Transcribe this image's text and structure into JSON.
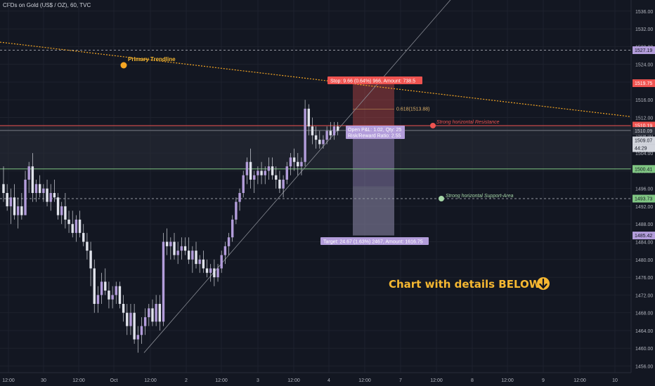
{
  "header": {
    "title": "CFDs on Gold (US$ / OZ), 60, TVC"
  },
  "colors": {
    "background": "#131722",
    "candle": "#b39ddb",
    "resistance": "#ef5350",
    "support": "#81c784",
    "trendline": "#f5a623",
    "gold_text": "#f5b731"
  },
  "chart_data": {
    "type": "candlestick",
    "title": "CFDs on Gold (US$ / OZ), 60, TVC",
    "ylim": [
      1454.5,
      1538.5
    ],
    "y_ticks": [
      1536,
      1532,
      1528,
      1524,
      1520,
      1516,
      1512,
      1508,
      1504,
      1500,
      1496,
      1492,
      1488,
      1484,
      1480,
      1476,
      1472,
      1468,
      1464,
      1460,
      1456
    ],
    "x_ticks": [
      "12:00",
      "30",
      "12:00",
      "Oct",
      "12:00",
      "2",
      "12:00",
      "3",
      "12:00",
      "4",
      "12:00",
      "7",
      "12:00",
      "8",
      "12:00",
      "9",
      "12:00",
      "10"
    ],
    "price_labels": [
      {
        "value": "1527.19",
        "color": "#b39ddb"
      },
      {
        "value": "1519.75",
        "color": "#ef5350"
      },
      {
        "value": "1510.19",
        "color": "#ef5350"
      },
      {
        "value": "1510.09",
        "color": "#2a2e39"
      },
      {
        "value": "1509.07",
        "color": "#d1d4dc"
      },
      {
        "value": "44:29",
        "color": "#d1d4dc"
      },
      {
        "value": "1500.41",
        "color": "#81c784"
      },
      {
        "value": "1493.73",
        "color": "#81c784"
      },
      {
        "value": "1485.42",
        "color": "#b39ddb"
      }
    ],
    "levels": {
      "resistance": 1510.19,
      "support": 1500.41,
      "support_area": 1493.73,
      "level_1527": 1527.19,
      "fib": 1513.88,
      "stop": 1519.75,
      "entry": 1510.09,
      "target": 1485.42
    },
    "annotations": {
      "primary_trendline": "Primary Trendline",
      "strong_resistance": "Strong horizontal Resistance",
      "strong_support": "Strong horizontal Support-Area",
      "fib_label": "0.618(1513.88)",
      "stop_label": "Stop: 9.66 (0.64%) 966, Amount: 738.5",
      "pnl_label_1": "Open P&L: 1.02, Qty: 25",
      "pnl_label_2": "Risk/Reward Ratio: 2.55",
      "target_label": "Target: 24.67 (1.63%) 2467, Amount: 1616.75",
      "cta": "Chart with details BELOW"
    },
    "candles": [
      [
        1497,
        1501,
        1493,
        1495
      ],
      [
        1495,
        1497,
        1491,
        1492
      ],
      [
        1492,
        1496,
        1488,
        1494
      ],
      [
        1494,
        1497,
        1489,
        1490
      ],
      [
        1490,
        1494,
        1487,
        1492
      ],
      [
        1492,
        1495,
        1489,
        1490
      ],
      [
        1490,
        1500,
        1490,
        1498
      ],
      [
        1498,
        1502,
        1495,
        1501
      ],
      [
        1501,
        1504,
        1493,
        1495
      ],
      [
        1495,
        1498,
        1493,
        1497
      ],
      [
        1497,
        1499,
        1494,
        1495
      ],
      [
        1495,
        1497,
        1493,
        1496
      ],
      [
        1496,
        1498,
        1492,
        1493
      ],
      [
        1493,
        1497,
        1491,
        1495
      ],
      [
        1495,
        1498,
        1493,
        1494
      ],
      [
        1494,
        1495,
        1489,
        1490
      ],
      [
        1490,
        1493,
        1488,
        1492
      ],
      [
        1492,
        1495,
        1487,
        1489
      ],
      [
        1489,
        1491,
        1486,
        1488
      ],
      [
        1488,
        1491,
        1485,
        1486
      ],
      [
        1486,
        1490,
        1484,
        1489
      ],
      [
        1489,
        1491,
        1485,
        1486
      ],
      [
        1486,
        1488,
        1483,
        1484
      ],
      [
        1484,
        1486,
        1480,
        1482
      ],
      [
        1482,
        1484,
        1474,
        1478
      ],
      [
        1478,
        1480,
        1468,
        1470
      ],
      [
        1470,
        1474,
        1468,
        1472
      ],
      [
        1472,
        1477,
        1470,
        1475
      ],
      [
        1475,
        1478,
        1472,
        1473
      ],
      [
        1473,
        1475,
        1469,
        1471
      ],
      [
        1471,
        1474,
        1469,
        1472
      ],
      [
        1472,
        1475,
        1470,
        1474
      ],
      [
        1474,
        1475,
        1469,
        1470
      ],
      [
        1470,
        1472,
        1466,
        1468
      ],
      [
        1468,
        1470,
        1463,
        1465
      ],
      [
        1465,
        1470,
        1463,
        1468
      ],
      [
        1468,
        1470,
        1461,
        1462
      ],
      [
        1462,
        1465,
        1459,
        1463
      ],
      [
        1463,
        1467,
        1461,
        1465
      ],
      [
        1465,
        1469,
        1463,
        1467
      ],
      [
        1467,
        1470,
        1465,
        1469
      ],
      [
        1469,
        1471,
        1465,
        1466
      ],
      [
        1466,
        1472,
        1465,
        1470
      ],
      [
        1470,
        1472,
        1464,
        1466
      ],
      [
        1466,
        1486,
        1465,
        1484
      ],
      [
        1484,
        1487,
        1481,
        1483
      ],
      [
        1483,
        1485,
        1480,
        1484
      ],
      [
        1484,
        1486,
        1480,
        1481
      ],
      [
        1481,
        1484,
        1479,
        1482
      ],
      [
        1482,
        1485,
        1480,
        1483
      ],
      [
        1483,
        1485,
        1481,
        1482
      ],
      [
        1482,
        1485,
        1479,
        1480
      ],
      [
        1480,
        1483,
        1477,
        1482
      ],
      [
        1482,
        1484,
        1478,
        1479
      ],
      [
        1479,
        1481,
        1477,
        1480
      ],
      [
        1480,
        1482,
        1477,
        1478
      ],
      [
        1478,
        1480,
        1476,
        1477
      ],
      [
        1477,
        1479,
        1475,
        1478
      ],
      [
        1478,
        1480,
        1474,
        1476
      ],
      [
        1476,
        1479,
        1475,
        1478
      ],
      [
        1478,
        1482,
        1477,
        1481
      ],
      [
        1481,
        1484,
        1479,
        1483
      ],
      [
        1483,
        1486,
        1481,
        1485
      ],
      [
        1485,
        1490,
        1484,
        1489
      ],
      [
        1489,
        1494,
        1488,
        1493
      ],
      [
        1493,
        1496,
        1491,
        1495
      ],
      [
        1495,
        1500,
        1494,
        1499
      ],
      [
        1499,
        1503,
        1497,
        1502
      ],
      [
        1502,
        1505,
        1496,
        1498
      ],
      [
        1498,
        1500,
        1495,
        1499
      ],
      [
        1499,
        1501,
        1497,
        1500
      ],
      [
        1500,
        1502,
        1497,
        1499
      ],
      [
        1499,
        1501,
        1497,
        1500
      ],
      [
        1500,
        1503,
        1498,
        1501
      ],
      [
        1501,
        1503,
        1498,
        1499
      ],
      [
        1499,
        1501,
        1496,
        1498
      ],
      [
        1498,
        1500,
        1495,
        1496
      ],
      [
        1496,
        1499,
        1494,
        1498
      ],
      [
        1498,
        1502,
        1497,
        1501
      ],
      [
        1501,
        1504,
        1499,
        1503
      ],
      [
        1503,
        1505,
        1500,
        1502
      ],
      [
        1502,
        1504,
        1499,
        1501
      ],
      [
        1501,
        1503,
        1499,
        1502
      ],
      [
        1502,
        1516,
        1501,
        1514
      ],
      [
        1514,
        1515,
        1508,
        1510
      ],
      [
        1510,
        1512,
        1506,
        1508
      ],
      [
        1508,
        1510,
        1505,
        1507
      ],
      [
        1507,
        1509,
        1505,
        1506
      ],
      [
        1506,
        1508,
        1505,
        1507
      ],
      [
        1507,
        1510,
        1506,
        1509
      ],
      [
        1509,
        1511,
        1507,
        1508
      ],
      [
        1508,
        1511,
        1507,
        1510
      ],
      [
        1510,
        1511,
        1508,
        1509
      ]
    ]
  }
}
